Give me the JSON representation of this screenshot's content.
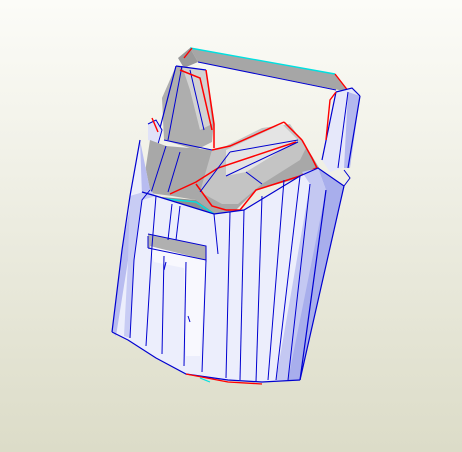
{
  "viewport": {
    "background_top": "#fcfcf8",
    "background_bottom": "#dcdcc8"
  },
  "model": {
    "fill_outer": "#eeeefc",
    "fill_outer_dark": "#8c94e8",
    "fill_inner_gray": "#a4a4a4",
    "fill_inner_light": "#d8d8d8",
    "edge_mountain": "#ff0000",
    "edge_valley": "#00e8e8",
    "edge_fold": "#0000e0"
  }
}
